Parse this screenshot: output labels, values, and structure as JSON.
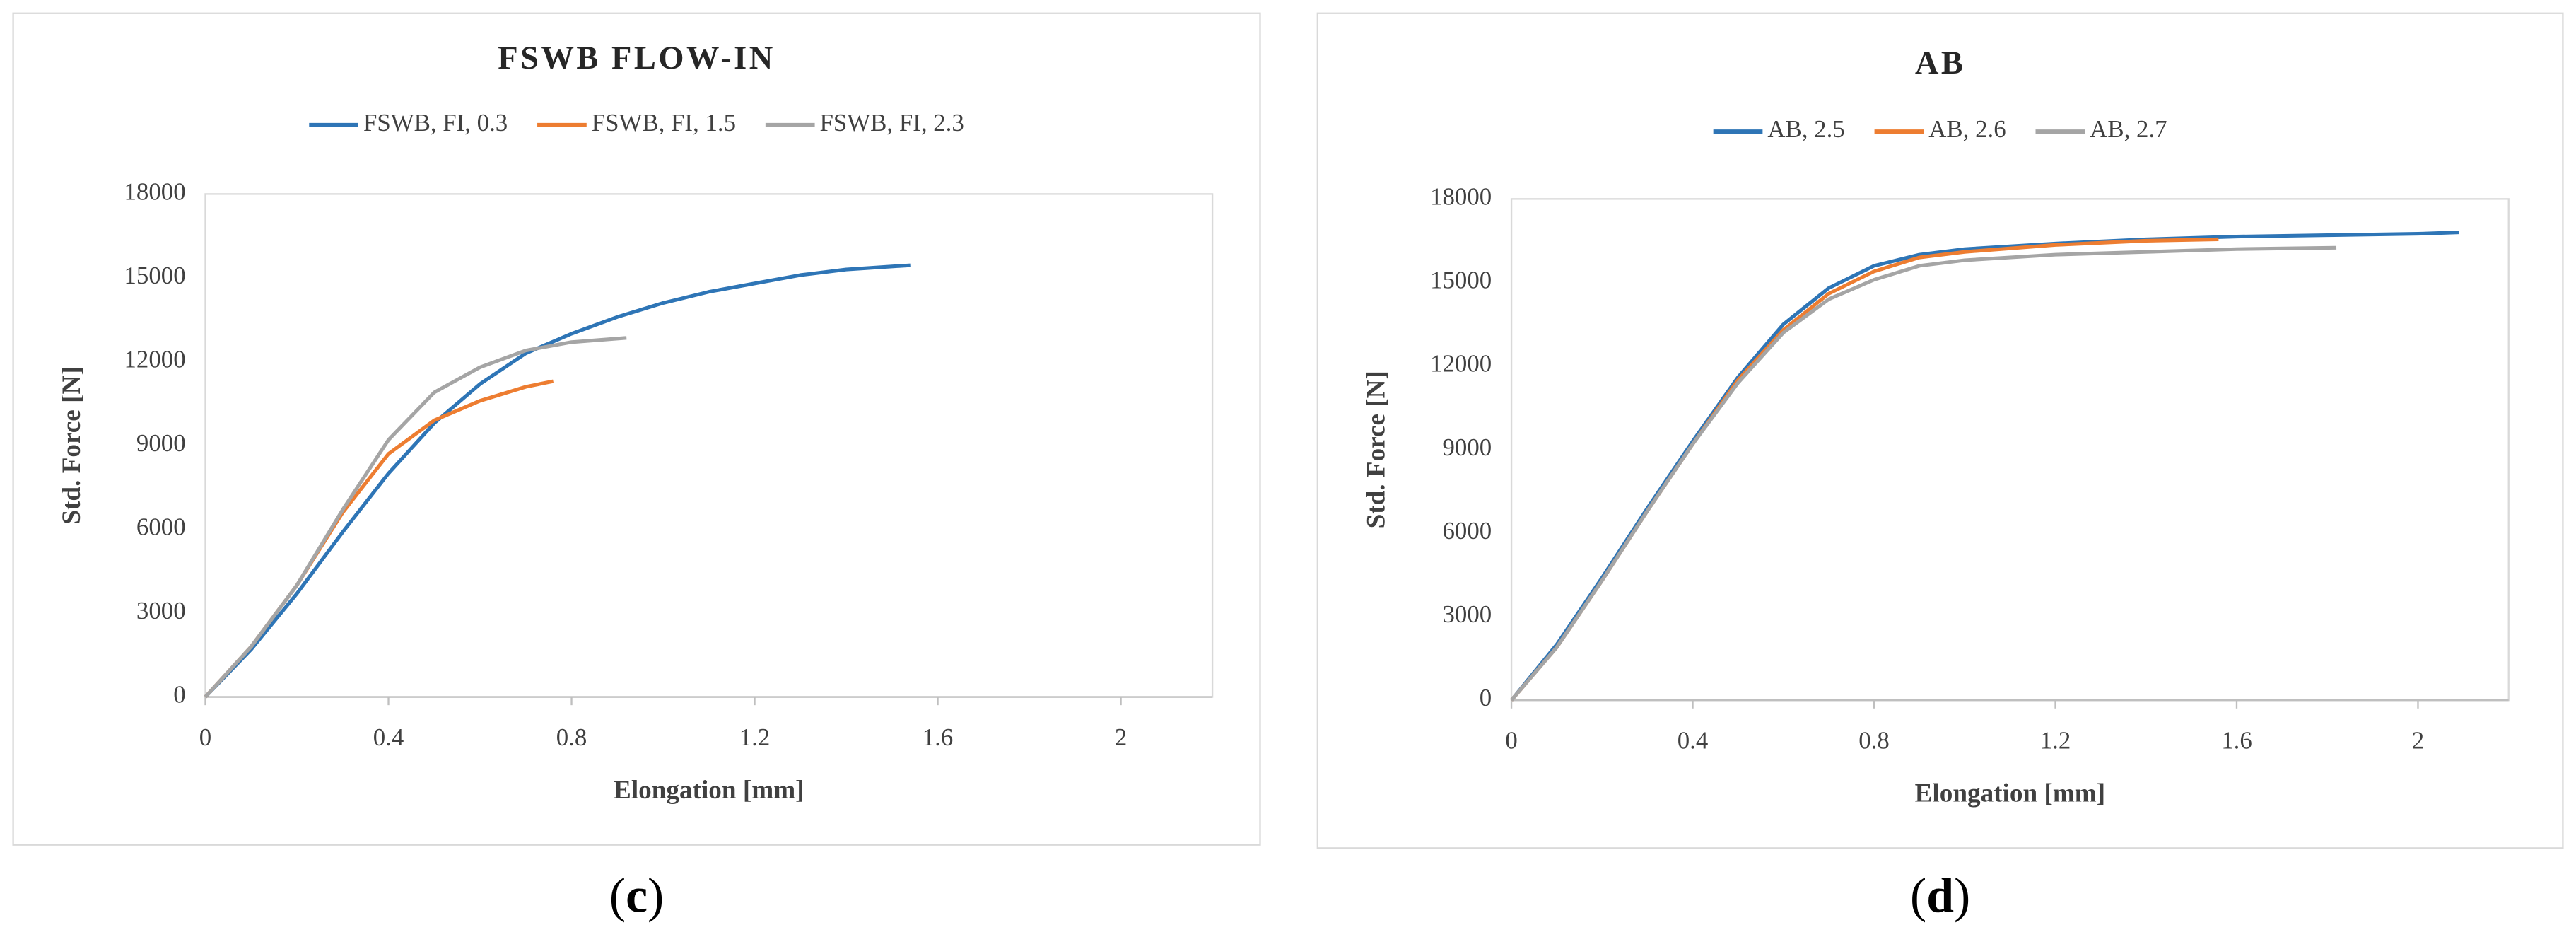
{
  "chart_data": [
    {
      "type": "line",
      "title": "FSWB FLOW-IN",
      "x_label": "Elongation [mm]",
      "y_label": "Std. Force [N]",
      "caption_prefix": "(",
      "caption": "c",
      "caption_suffix": ")",
      "xlim": [
        0,
        2.2
      ],
      "xticks": [
        0,
        0.4,
        0.8,
        1.2,
        1.6,
        2
      ],
      "ylim": [
        0,
        18000
      ],
      "yticks": [
        0,
        3000,
        6000,
        9000,
        12000,
        15000,
        18000
      ],
      "grid": false,
      "legend": "top",
      "series": [
        {
          "name": "FSWB, FI, 0.3",
          "color": "#2e75b6",
          "x": [
            0,
            0.1,
            0.2,
            0.3,
            0.4,
            0.5,
            0.6,
            0.7,
            0.8,
            0.9,
            1.0,
            1.1,
            1.2,
            1.3,
            1.4,
            1.54
          ],
          "values": [
            0,
            1700,
            3700,
            5900,
            8000,
            9800,
            11200,
            12300,
            13000,
            13600,
            14100,
            14500,
            14800,
            15100,
            15300,
            15450
          ]
        },
        {
          "name": "FSWB, FI, 1.5",
          "color": "#ed7d31",
          "x": [
            0,
            0.1,
            0.2,
            0.3,
            0.4,
            0.5,
            0.6,
            0.7,
            0.76
          ],
          "values": [
            0,
            1800,
            4000,
            6600,
            8700,
            9900,
            10600,
            11100,
            11300
          ]
        },
        {
          "name": "FSWB, FI, 2.3",
          "color": "#a5a5a5",
          "x": [
            0,
            0.1,
            0.2,
            0.3,
            0.4,
            0.5,
            0.6,
            0.7,
            0.8,
            0.92
          ],
          "values": [
            0,
            1800,
            4000,
            6700,
            9200,
            10900,
            11800,
            12400,
            12700,
            12850
          ]
        }
      ]
    },
    {
      "type": "line",
      "title": "AB",
      "x_label": "Elongation [mm]",
      "y_label": "Std. Force [N]",
      "caption_prefix": "(",
      "caption": "d",
      "caption_suffix": ")",
      "xlim": [
        0,
        2.2
      ],
      "xticks": [
        0,
        0.4,
        0.8,
        1.2,
        1.6,
        2
      ],
      "ylim": [
        0,
        18000
      ],
      "yticks": [
        0,
        3000,
        6000,
        9000,
        12000,
        15000,
        18000
      ],
      "grid": false,
      "legend": "top",
      "series": [
        {
          "name": "AB, 2.5",
          "color": "#2e75b6",
          "x": [
            0,
            0.1,
            0.2,
            0.3,
            0.4,
            0.5,
            0.6,
            0.7,
            0.8,
            0.9,
            1.0,
            1.2,
            1.4,
            1.6,
            1.8,
            2.0,
            2.09
          ],
          "values": [
            0,
            2000,
            4400,
            6900,
            9300,
            11600,
            13500,
            14800,
            15600,
            16000,
            16200,
            16400,
            16550,
            16650,
            16700,
            16750,
            16800
          ]
        },
        {
          "name": "AB, 2.6",
          "color": "#ed7d31",
          "x": [
            0,
            0.1,
            0.2,
            0.3,
            0.4,
            0.5,
            0.6,
            0.7,
            0.8,
            0.9,
            1.0,
            1.2,
            1.4,
            1.56
          ],
          "values": [
            0,
            1900,
            4300,
            6800,
            9200,
            11500,
            13300,
            14600,
            15400,
            15900,
            16100,
            16350,
            16500,
            16550
          ]
        },
        {
          "name": "AB, 2.7",
          "color": "#a5a5a5",
          "x": [
            0,
            0.1,
            0.2,
            0.3,
            0.4,
            0.5,
            0.6,
            0.7,
            0.8,
            0.9,
            1.0,
            1.2,
            1.4,
            1.6,
            1.82
          ],
          "values": [
            0,
            1900,
            4300,
            6800,
            9200,
            11400,
            13200,
            14400,
            15100,
            15600,
            15800,
            16000,
            16100,
            16200,
            16250
          ]
        }
      ]
    }
  ]
}
